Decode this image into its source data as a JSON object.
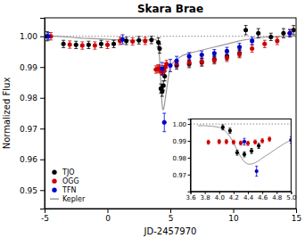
{
  "chart_data": [
    {
      "type": "scatter",
      "title": "Skara Brae",
      "xlabel": "JD-2457970",
      "ylabel": "Normalized Flux",
      "xlim": [
        -5,
        15
      ],
      "ylim": [
        0.944,
        1.006
      ],
      "xticks": [
        -5,
        0,
        5,
        10,
        15
      ],
      "yticks": [
        0.95,
        0.96,
        0.97,
        0.98,
        0.99,
        {
          "value": 1.0,
          "label": "1.00"
        }
      ],
      "grid": false,
      "legend": "lower left",
      "hline": {
        "value": 1.0,
        "color": "#888888",
        "line_style": "dotted"
      },
      "series": [
        {
          "name": "TJO",
          "type": "scatter",
          "marker": "circle",
          "color": "#000000",
          "x": [
            -4.8,
            -3.5,
            -2.5,
            -1.5,
            -0.5,
            0.5,
            1.5,
            2.5,
            3.5,
            4.05,
            4.15,
            4.25,
            4.35,
            4.45,
            4.55,
            5.5,
            6.5,
            7.5,
            8.5,
            9.5,
            10.5,
            11.0,
            12.0,
            13.0,
            14.0,
            14.8
          ],
          "values": [
            1.0,
            0.9975,
            0.9972,
            0.9972,
            0.9975,
            0.9975,
            0.9985,
            0.9987,
            0.9988,
            0.998,
            0.996,
            0.983,
            0.982,
            0.984,
            0.987,
            0.9905,
            0.991,
            0.9915,
            0.9925,
            0.9935,
            0.9945,
            1.002,
            1.001,
            0.9998,
            1.001,
            1.002
          ],
          "errors": [
            0.0015,
            0.0012,
            0.0012,
            0.0012,
            0.0012,
            0.0012,
            0.0012,
            0.0012,
            0.0012,
            0.0015,
            0.0015,
            0.0015,
            0.0015,
            0.0015,
            0.0015,
            0.0012,
            0.0012,
            0.0012,
            0.0012,
            0.0012,
            0.0012,
            0.0015,
            0.0015,
            0.0012,
            0.0015,
            0.0015
          ]
        },
        {
          "name": "OGG",
          "type": "scatter",
          "marker": "circle",
          "color": "#cc0000",
          "x": [
            -4.5,
            -3.0,
            -2.0,
            -1.0,
            0.0,
            1.0,
            2.0,
            3.0,
            3.85,
            4.0,
            4.1,
            4.2,
            4.3,
            4.4,
            4.5,
            4.6,
            4.7,
            5.5,
            6.5,
            7.5,
            8.5,
            9.5,
            10.5,
            11.5,
            12.5,
            13.5,
            14.5
          ],
          "values": [
            1.0,
            0.9973,
            0.997,
            0.997,
            0.9972,
            0.9985,
            0.9983,
            0.9985,
            0.9892,
            0.9895,
            0.9895,
            0.9892,
            0.9887,
            0.9885,
            0.9893,
            0.99,
            0.991,
            0.991,
            0.9915,
            0.9918,
            0.9922,
            0.993,
            0.9942,
            0.996,
            0.9975,
            0.9985,
            1.001
          ],
          "errors": [
            0.0012,
            0.0012,
            0.0012,
            0.0012,
            0.0012,
            0.0012,
            0.0012,
            0.0012,
            0.0012,
            0.0012,
            0.0012,
            0.0012,
            0.0012,
            0.0012,
            0.0012,
            0.0012,
            0.0012,
            0.0012,
            0.0012,
            0.0012,
            0.0012,
            0.0012,
            0.0012,
            0.0012,
            0.0012,
            0.0012,
            0.0012
          ]
        },
        {
          "name": "TFN",
          "type": "scatter",
          "marker": "circle",
          "color": "#0000cc",
          "x": [
            -4.7,
            1.2,
            4.35,
            4.52,
            5.0,
            5.5,
            6.5,
            7.5,
            8.5,
            9.5,
            10.5,
            11.5,
            14.5
          ],
          "values": [
            1.0,
            0.999,
            0.9895,
            0.972,
            0.9905,
            0.992,
            0.9935,
            0.994,
            0.9945,
            0.9952,
            0.9965,
            0.9985,
            1.001
          ],
          "errors": [
            0.0012,
            0.0015,
            0.002,
            0.003,
            0.002,
            0.0015,
            0.0012,
            0.0012,
            0.0012,
            0.0012,
            0.0012,
            0.0012,
            0.0012
          ]
        },
        {
          "name": "Kepler",
          "type": "line",
          "line_style": "solid",
          "color": "#999999",
          "x": [
            -5.0,
            -4.0,
            -3.0,
            -2.0,
            -1.0,
            0.0,
            1.0,
            2.0,
            3.0,
            3.5,
            3.7,
            3.8,
            3.9,
            4.0,
            4.05,
            4.1,
            4.15,
            4.2,
            4.25,
            4.3,
            4.35,
            4.4,
            4.45,
            4.5,
            4.55,
            4.6,
            4.7,
            4.8,
            4.9,
            5.0,
            5.5,
            6.0,
            6.5,
            7.0,
            7.5,
            8.0,
            8.5,
            9.0,
            9.5,
            10.0,
            10.5,
            11.0,
            11.5,
            12.0,
            12.5,
            13.0,
            13.5,
            14.0,
            15.0
          ],
          "values": [
            1.0,
            1.0,
            0.9997,
            0.9994,
            0.9992,
            0.999,
            0.9988,
            0.9987,
            0.9988,
            0.9989,
            0.999,
            0.999,
            0.9987,
            0.998,
            0.997,
            0.9952,
            0.9925,
            0.9888,
            0.9845,
            0.9805,
            0.9775,
            0.9762,
            0.9762,
            0.977,
            0.9782,
            0.9798,
            0.9825,
            0.9855,
            0.9882,
            0.9905,
            0.9925,
            0.9938,
            0.9945,
            0.995,
            0.9955,
            0.996,
            0.9965,
            0.997,
            0.9975,
            0.998,
            0.9985,
            0.9989,
            0.9992,
            0.9995,
            0.9997,
            0.9998,
            0.9999,
            1.0,
            1.0
          ]
        }
      ]
    },
    {
      "type": "scatter",
      "xlim": [
        3.6,
        5.0
      ],
      "ylim": [
        0.96,
        1.003
      ],
      "xticks": [
        3.6,
        3.8,
        {
          "value": 4.0,
          "label": "4.0"
        },
        4.2,
        4.4,
        4.6,
        4.8,
        {
          "value": 5.0,
          "label": "5.0"
        }
      ],
      "yticks": [
        0.97,
        0.98,
        0.99,
        {
          "value": 1.0,
          "label": "1.00"
        }
      ],
      "grid": false,
      "hline": {
        "value": 1.0,
        "color": "#888888",
        "line_style": "dotted"
      },
      "series": [
        {
          "name": "TJO",
          "type": "scatter",
          "marker": "circle",
          "color": "#000000",
          "x": [
            4.05,
            4.15,
            4.25,
            4.35,
            4.45,
            4.55
          ],
          "values": [
            0.998,
            0.996,
            0.983,
            0.982,
            0.984,
            0.987
          ],
          "errors": [
            0.0015,
            0.0015,
            0.0015,
            0.0015,
            0.0015,
            0.0015
          ]
        },
        {
          "name": "OGG",
          "type": "scatter",
          "marker": "circle",
          "color": "#cc0000",
          "x": [
            3.85,
            4.0,
            4.1,
            4.2,
            4.3,
            4.4,
            4.5,
            4.6,
            4.7
          ],
          "values": [
            0.9892,
            0.9895,
            0.9895,
            0.9892,
            0.9887,
            0.9885,
            0.9893,
            0.99,
            0.991
          ],
          "errors": [
            0.0012,
            0.0012,
            0.0012,
            0.0012,
            0.0012,
            0.0012,
            0.0012,
            0.0012,
            0.0012
          ]
        },
        {
          "name": "TFN",
          "type": "scatter",
          "marker": "circle",
          "color": "#0000cc",
          "x": [
            4.35,
            4.52,
            5.0
          ],
          "values": [
            0.9895,
            0.972,
            0.9905
          ],
          "errors": [
            0.002,
            0.003,
            0.002
          ]
        },
        {
          "name": "Kepler",
          "type": "line",
          "line_style": "solid",
          "color": "#999999",
          "x": [
            3.7,
            3.8,
            3.9,
            4.0,
            4.05,
            4.1,
            4.15,
            4.2,
            4.25,
            4.3,
            4.35,
            4.4,
            4.45,
            4.5,
            4.55,
            4.6,
            4.7,
            4.8,
            4.9,
            5.0
          ],
          "values": [
            0.999,
            0.999,
            0.9987,
            0.998,
            0.997,
            0.9952,
            0.9925,
            0.9888,
            0.9845,
            0.9805,
            0.9775,
            0.9762,
            0.9762,
            0.977,
            0.9782,
            0.9798,
            0.9825,
            0.9855,
            0.9882,
            0.9905
          ]
        }
      ]
    }
  ]
}
